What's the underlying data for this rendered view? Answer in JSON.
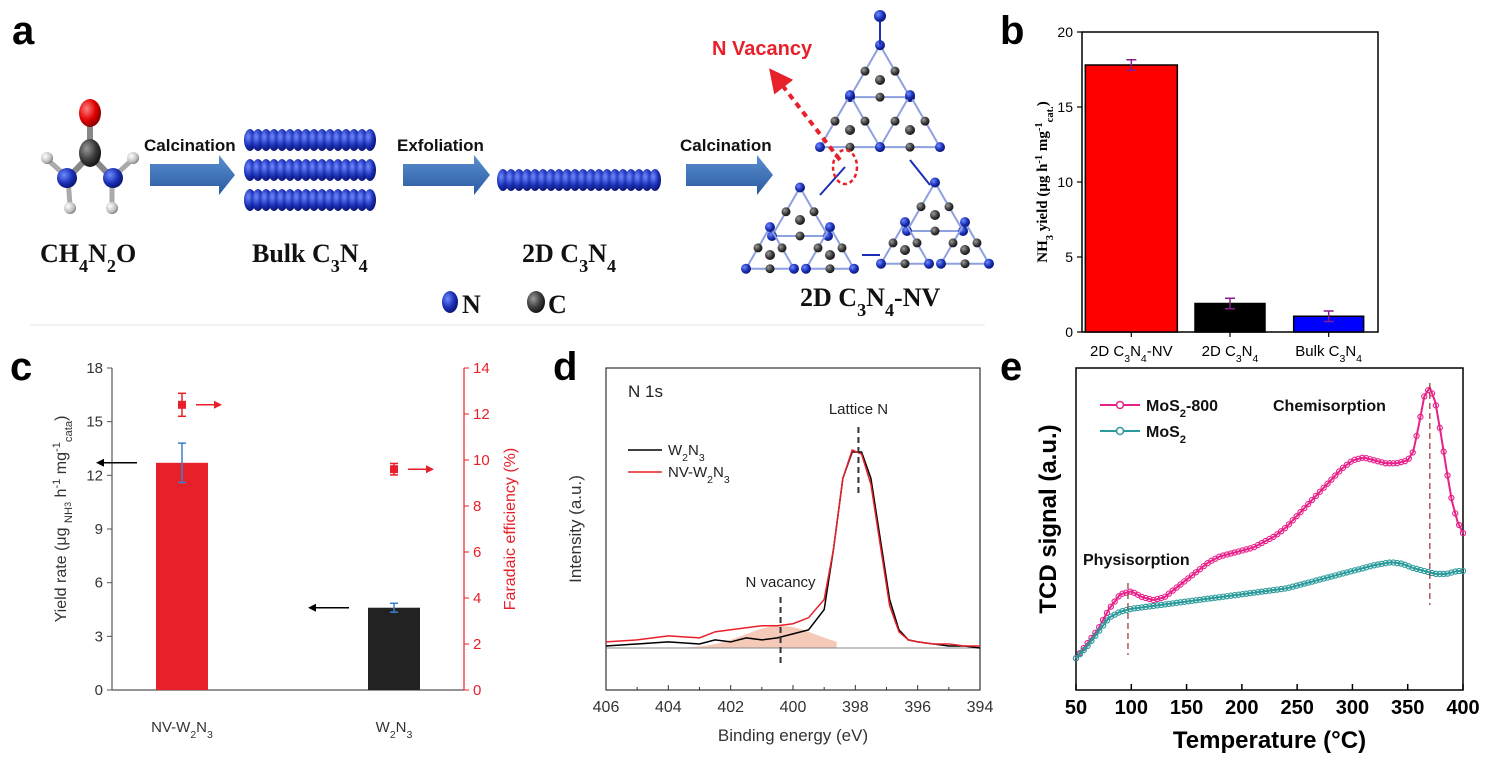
{
  "panel_letters": [
    "a",
    "b",
    "c",
    "d",
    "e"
  ],
  "schematic": {
    "steps": [
      {
        "arrow_label": "Calcination"
      },
      {
        "arrow_label": "Exfoliation"
      },
      {
        "arrow_label": "Calcination"
      }
    ],
    "species": {
      "urea": {
        "base": "CH",
        "s1": "4",
        "m1": "N",
        "s2": "2",
        "tail": "O"
      },
      "bulk": {
        "base": "Bulk C",
        "s1": "3",
        "m1": "N",
        "s2": "4",
        "tail": ""
      },
      "twod": {
        "base": "2D C",
        "s1": "3",
        "m1": "N",
        "s2": "4",
        "tail": ""
      },
      "nv": {
        "base": "2D C",
        "s1": "3",
        "m1": "N",
        "s2": "4",
        "tail": "-NV"
      }
    },
    "vacancy_label": "N Vacancy",
    "legend": [
      {
        "symbol": "N",
        "color": "#1a2fb5"
      },
      {
        "symbol": "C",
        "color": "#3a3a3a"
      }
    ]
  },
  "chart_data": [
    {
      "panel": "b",
      "type": "bar",
      "categories": [
        {
          "base": "2D C",
          "s1": "3",
          "m1": "N",
          "s2": "4",
          "tail": "-NV"
        },
        {
          "base": "2D C",
          "s1": "3",
          "m1": "N",
          "s2": "4",
          "tail": ""
        },
        {
          "base": "Bulk C",
          "s1": "3",
          "m1": "N",
          "s2": "4",
          "tail": ""
        }
      ],
      "values": [
        17.8,
        1.9,
        1.05
      ],
      "errors": [
        0.35,
        0.35,
        0.35
      ],
      "colors": [
        "#ff0000",
        "#000000",
        "#0000ff"
      ],
      "ylabel": {
        "t1": "NH",
        "s1": "3",
        "t2": " yield (μg h",
        "p1": "-1",
        "t3": " mg",
        "p2": "-1",
        "s2": "cat.",
        "t4": ")"
      },
      "ylim": [
        0,
        20
      ],
      "yticks": [
        0,
        5,
        10,
        15,
        20
      ]
    },
    {
      "panel": "c",
      "type": "bar",
      "categories": [
        {
          "t1": "NV-W",
          "s1": "2",
          "t2": "N",
          "s2": "3"
        },
        {
          "t1": "W",
          "s1": "2",
          "t2": "N",
          "s2": "3"
        }
      ],
      "series": [
        {
          "axis": "left",
          "values": [
            12.7,
            4.6
          ],
          "errors": [
            1.1,
            0.25
          ],
          "colors": [
            "#e8202a",
            "#222222"
          ]
        },
        {
          "axis": "right",
          "values": [
            12.4,
            9.6
          ],
          "errors": [
            0.5,
            0.25
          ],
          "color": "#e8202a"
        }
      ],
      "ylabel_left": {
        "t1": "Yield rate (μg ",
        "s1": "NH",
        "ss": "3",
        "t2": " h",
        "p1": "-1",
        "t3": " mg",
        "p2": "-1",
        "s2": "cata",
        "t4": ")"
      },
      "ylabel_right": "Faradaic efficiency (%)",
      "ylim_left": [
        0,
        18
      ],
      "yticks_left": [
        0,
        3,
        6,
        9,
        12,
        15,
        18
      ],
      "ylim_right": [
        0,
        14
      ],
      "yticks_right": [
        0,
        2,
        4,
        6,
        8,
        10,
        12,
        14
      ]
    },
    {
      "panel": "d",
      "type": "line",
      "title": "N 1s",
      "xlabel": "Binding energy (eV)",
      "ylabel": "Intensity (a.u.)",
      "xlim": [
        406,
        394
      ],
      "xticks": [
        406,
        404,
        402,
        400,
        398,
        396,
        394
      ],
      "series": [
        {
          "name": {
            "t1": "W",
            "s1": "2",
            "t2": "N",
            "s2": "3"
          },
          "color": "#000000",
          "points": [
            [
              406,
              0.02
            ],
            [
              405,
              0.03
            ],
            [
              404,
              0.04
            ],
            [
              403,
              0.03
            ],
            [
              402.5,
              0.05
            ],
            [
              402,
              0.04
            ],
            [
              401.5,
              0.06
            ],
            [
              401,
              0.05
            ],
            [
              400.5,
              0.06
            ],
            [
              400,
              0.08
            ],
            [
              399.5,
              0.1
            ],
            [
              399,
              0.2
            ],
            [
              398.7,
              0.5
            ],
            [
              398.4,
              0.85
            ],
            [
              398.1,
              0.98
            ],
            [
              397.8,
              0.98
            ],
            [
              397.5,
              0.85
            ],
            [
              397.2,
              0.55
            ],
            [
              396.9,
              0.25
            ],
            [
              396.6,
              0.1
            ],
            [
              396.3,
              0.05
            ],
            [
              396,
              0.04
            ],
            [
              395.5,
              0.03
            ],
            [
              395,
              0.02
            ],
            [
              394.5,
              0.02
            ],
            [
              394,
              0.01
            ]
          ]
        },
        {
          "name": {
            "t1": "NV-W",
            "s1": "2",
            "t2": "N",
            "s2": "3"
          },
          "color": "#e8202a",
          "points": [
            [
              406,
              0.04
            ],
            [
              405,
              0.05
            ],
            [
              404,
              0.07
            ],
            [
              403,
              0.06
            ],
            [
              402.5,
              0.09
            ],
            [
              402,
              0.1
            ],
            [
              401.5,
              0.11
            ],
            [
              401,
              0.12
            ],
            [
              400.5,
              0.12
            ],
            [
              400,
              0.13
            ],
            [
              399.5,
              0.16
            ],
            [
              399,
              0.25
            ],
            [
              398.7,
              0.5
            ],
            [
              398.4,
              0.85
            ],
            [
              398.1,
              0.99
            ],
            [
              397.8,
              0.97
            ],
            [
              397.5,
              0.82
            ],
            [
              397.2,
              0.52
            ],
            [
              396.9,
              0.22
            ],
            [
              396.6,
              0.09
            ],
            [
              396.3,
              0.05
            ],
            [
              396,
              0.04
            ],
            [
              395.5,
              0.03
            ],
            [
              395,
              0.03
            ],
            [
              394.5,
              0.02
            ],
            [
              394,
              0.02
            ]
          ]
        }
      ],
      "annotations": [
        {
          "text": "Lattice N",
          "x": 397.9
        },
        {
          "text": "N vacancy",
          "x": 400.4
        }
      ]
    },
    {
      "panel": "e",
      "type": "scatter",
      "xlabel": "Temperature (°C)",
      "ylabel": "TCD signal (a.u.)",
      "xlim": [
        50,
        400
      ],
      "xticks": [
        50,
        100,
        150,
        200,
        250,
        300,
        350,
        400
      ],
      "series": [
        {
          "name": {
            "t1": "MoS",
            "s1": "2",
            "t2": "-800"
          },
          "color": "#e8208a",
          "points": [
            [
              50,
              0.03
            ],
            [
              60,
              0.08
            ],
            [
              70,
              0.13
            ],
            [
              80,
              0.2
            ],
            [
              90,
              0.25
            ],
            [
              100,
              0.26
            ],
            [
              110,
              0.24
            ],
            [
              120,
              0.23
            ],
            [
              130,
              0.24
            ],
            [
              140,
              0.27
            ],
            [
              150,
              0.3
            ],
            [
              160,
              0.33
            ],
            [
              170,
              0.36
            ],
            [
              180,
              0.38
            ],
            [
              190,
              0.39
            ],
            [
              200,
              0.4
            ],
            [
              210,
              0.41
            ],
            [
              220,
              0.43
            ],
            [
              230,
              0.45
            ],
            [
              240,
              0.48
            ],
            [
              250,
              0.52
            ],
            [
              260,
              0.56
            ],
            [
              270,
              0.6
            ],
            [
              280,
              0.64
            ],
            [
              290,
              0.68
            ],
            [
              300,
              0.71
            ],
            [
              310,
              0.72
            ],
            [
              320,
              0.71
            ],
            [
              330,
              0.7
            ],
            [
              340,
              0.7
            ],
            [
              350,
              0.71
            ],
            [
              355,
              0.74
            ],
            [
              360,
              0.83
            ],
            [
              365,
              0.93
            ],
            [
              370,
              0.96
            ],
            [
              375,
              0.91
            ],
            [
              380,
              0.8
            ],
            [
              385,
              0.68
            ],
            [
              390,
              0.57
            ],
            [
              395,
              0.5
            ],
            [
              400,
              0.46
            ]
          ]
        },
        {
          "name": {
            "t1": "MoS",
            "s1": "2",
            "t2": ""
          },
          "color": "#2a9a9a",
          "points": [
            [
              50,
              0.03
            ],
            [
              60,
              0.07
            ],
            [
              70,
              0.12
            ],
            [
              80,
              0.17
            ],
            [
              90,
              0.19
            ],
            [
              100,
              0.2
            ],
            [
              120,
              0.21
            ],
            [
              140,
              0.22
            ],
            [
              160,
              0.23
            ],
            [
              180,
              0.24
            ],
            [
              200,
              0.25
            ],
            [
              220,
              0.26
            ],
            [
              240,
              0.27
            ],
            [
              260,
              0.29
            ],
            [
              280,
              0.31
            ],
            [
              300,
              0.33
            ],
            [
              320,
              0.35
            ],
            [
              335,
              0.36
            ],
            [
              345,
              0.355
            ],
            [
              355,
              0.34
            ],
            [
              365,
              0.33
            ],
            [
              375,
              0.32
            ],
            [
              385,
              0.32
            ],
            [
              395,
              0.33
            ],
            [
              400,
              0.33
            ]
          ]
        }
      ],
      "annotations": [
        {
          "text": "Physisorption",
          "x": 97
        },
        {
          "text": "Chemisorption",
          "x": 370
        }
      ]
    }
  ]
}
